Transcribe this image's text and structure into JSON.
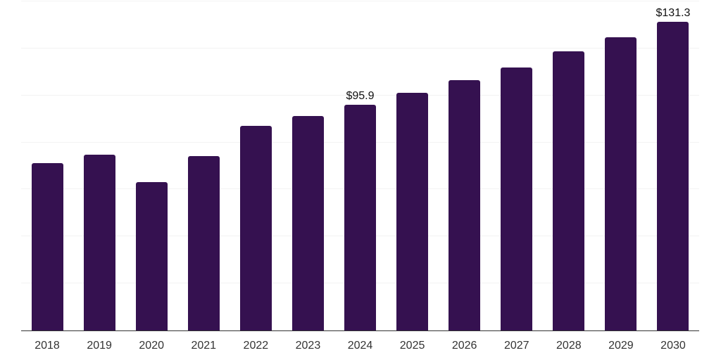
{
  "chart_data": {
    "type": "bar",
    "title": "",
    "xlabel": "",
    "ylabel": "",
    "categories": [
      "2018",
      "2019",
      "2020",
      "2021",
      "2022",
      "2023",
      "2024",
      "2025",
      "2026",
      "2027",
      "2028",
      "2029",
      "2030"
    ],
    "values": [
      71.1,
      74.8,
      63.1,
      74.2,
      87.0,
      91.2,
      95.9,
      101.1,
      106.4,
      111.9,
      118.7,
      124.7,
      131.3
    ],
    "data_labels": [
      "",
      "",
      "",
      "",
      "",
      "",
      "$95.9",
      "",
      "",
      "",
      "",
      "",
      "$131.3"
    ],
    "ylim": [
      0,
      140
    ],
    "gridline_step": 20,
    "grid": "horizontal",
    "legend": "none",
    "colors": {
      "bar": "#351150",
      "gridline": "#f3f3f3",
      "axis_line": "#333333",
      "tick_label": "#333333",
      "data_label": "#111111",
      "background": "#ffffff"
    }
  }
}
